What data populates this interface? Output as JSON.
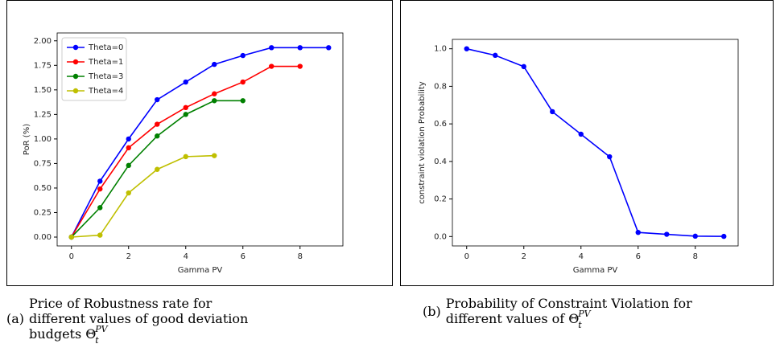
{
  "chart_data": [
    {
      "type": "line",
      "xlabel": "Gamma PV",
      "ylabel": "PoR (%)",
      "x": [
        0,
        1,
        2,
        3,
        4,
        5,
        6,
        7,
        8,
        9
      ],
      "series": [
        {
          "name": "Theta=0",
          "color": "#0000ff",
          "values": [
            0,
            0.57,
            1.0,
            1.4,
            1.58,
            1.76,
            1.85,
            1.93,
            1.93,
            1.93
          ]
        },
        {
          "name": "Theta=1",
          "color": "#ff0000",
          "values": [
            0,
            0.49,
            0.91,
            1.15,
            1.32,
            1.46,
            1.58,
            1.74,
            1.74,
            null
          ]
        },
        {
          "name": "Theta=3",
          "color": "#008000",
          "values": [
            0,
            0.3,
            0.73,
            1.03,
            1.25,
            1.39,
            1.39,
            null,
            null,
            null
          ]
        },
        {
          "name": "Theta=4",
          "color": "#bfbf00",
          "values": [
            0,
            0.02,
            0.45,
            0.69,
            0.82,
            0.83,
            null,
            null,
            null,
            null
          ]
        }
      ],
      "xlim": [
        -0.5,
        9.5
      ],
      "xticks": [
        0,
        2,
        4,
        6,
        8
      ],
      "ylim": [
        -0.09,
        2.08
      ],
      "yticks": [
        {
          "value": 0,
          "label": "0.00"
        },
        {
          "value": 0.25,
          "label": "0.25"
        },
        {
          "value": 0.5,
          "label": "0.50"
        },
        {
          "value": 0.75,
          "label": "0.75"
        },
        {
          "value": 1,
          "label": "1.00"
        },
        {
          "value": 1.25,
          "label": "1.25"
        },
        {
          "value": 1.5,
          "label": "1.50"
        },
        {
          "value": 1.75,
          "label": "1.75"
        },
        {
          "value": 2,
          "label": "2.00"
        }
      ],
      "legend": "upper left",
      "caption_label": "(a)",
      "caption": "Price of Robustness rate for different values of good deviation budgets",
      "caption_math": {
        "symbol": "Θ",
        "sub": "t",
        "sup": "PV"
      }
    },
    {
      "type": "line",
      "xlabel": "Gamma PV",
      "ylabel": "constraint violation Probability",
      "x": [
        0,
        1,
        2,
        3,
        4,
        5,
        6,
        7,
        8,
        9
      ],
      "series": [
        {
          "color": "#0000ff",
          "values": [
            1.0,
            0.965,
            0.905,
            0.665,
            0.545,
            0.425,
            0.022,
            0.012,
            0.002,
            0.001
          ]
        }
      ],
      "xlim": [
        -0.5,
        9.5
      ],
      "xticks": [
        0,
        2,
        4,
        6,
        8
      ],
      "ylim": [
        -0.05,
        1.05
      ],
      "yticks": [
        {
          "value": 0,
          "label": "0.0"
        },
        {
          "value": 0.2,
          "label": "0.2"
        },
        {
          "value": 0.4,
          "label": "0.4"
        },
        {
          "value": 0.6,
          "label": "0.6"
        },
        {
          "value": 0.8,
          "label": "0.8"
        },
        {
          "value": 1,
          "label": "1.0"
        }
      ],
      "caption_label": "(b)",
      "caption": "Probability of Constraint Violation for different values of",
      "caption_math": {
        "symbol": "Θ",
        "sub": "t",
        "sup": "PV"
      }
    }
  ]
}
